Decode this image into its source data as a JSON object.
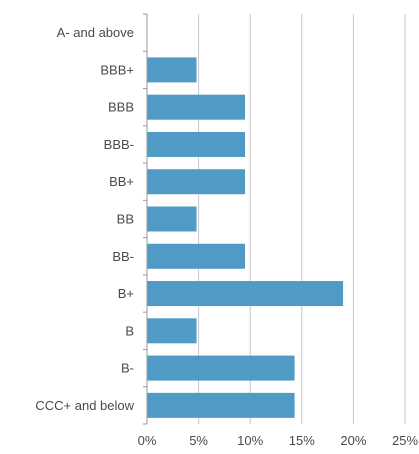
{
  "chart_data": {
    "type": "bar",
    "orientation": "horizontal",
    "categories": [
      "A- and above",
      "BBB+",
      "BBB",
      "BBB-",
      "BB+",
      "BB",
      "BB-",
      "B+",
      "B",
      "B-",
      "CCC+ and below"
    ],
    "values": [
      0,
      4.8,
      9.5,
      9.5,
      9.5,
      4.8,
      9.5,
      19.0,
      4.8,
      14.3,
      14.3
    ],
    "xlim": [
      0,
      25
    ],
    "ticks": [
      0,
      5,
      10,
      15,
      20,
      25
    ],
    "tick_labels": [
      "0%",
      "5%",
      "10%",
      "15%",
      "20%",
      "25%"
    ],
    "title": "",
    "xlabel": "",
    "ylabel": "",
    "grid": "vertical",
    "bar_color": "#4f9bc6"
  }
}
